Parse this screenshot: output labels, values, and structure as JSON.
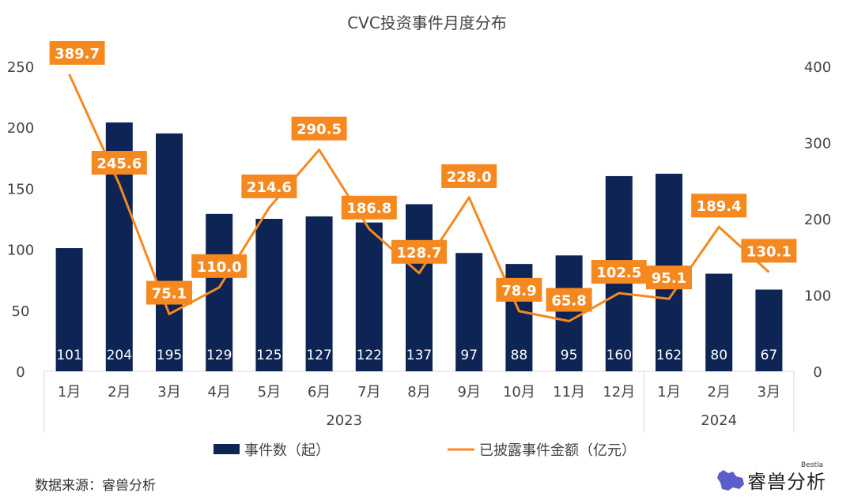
{
  "chart_data": {
    "type": "bar+line",
    "title": "CVC投资事件月度分布",
    "categories": [
      "1月",
      "2月",
      "3月",
      "4月",
      "5月",
      "6月",
      "7月",
      "8月",
      "9月",
      "10月",
      "11月",
      "12月",
      "1月",
      "2月",
      "3月"
    ],
    "groups": [
      {
        "label": "2023",
        "count": 12
      },
      {
        "label": "2024",
        "count": 3
      }
    ],
    "series": [
      {
        "name": "事件数（起）",
        "type": "bar",
        "axis": "left",
        "color": "#0d2454",
        "values": [
          101,
          204,
          195,
          129,
          125,
          127,
          122,
          137,
          97,
          88,
          95,
          160,
          162,
          80,
          67
        ]
      },
      {
        "name": "已披露事件金额（亿元）",
        "type": "line",
        "axis": "right",
        "color": "#f5891f",
        "values": [
          389.7,
          245.6,
          75.1,
          110.0,
          214.6,
          290.5,
          186.8,
          128.7,
          228.0,
          78.9,
          65.8,
          102.5,
          95.1,
          189.4,
          130.1
        ]
      }
    ],
    "left_axis": {
      "range": [
        0,
        250
      ],
      "ticks": [
        0,
        50,
        100,
        150,
        200,
        250
      ]
    },
    "right_axis": {
      "range": [
        0,
        400
      ],
      "ticks": [
        0,
        100,
        200,
        300,
        400
      ]
    },
    "grid": false,
    "legend_placement": "bottom"
  },
  "source": "数据来源：睿兽分析",
  "logo": {
    "text": "睿兽分析",
    "sub": "Bestla"
  }
}
